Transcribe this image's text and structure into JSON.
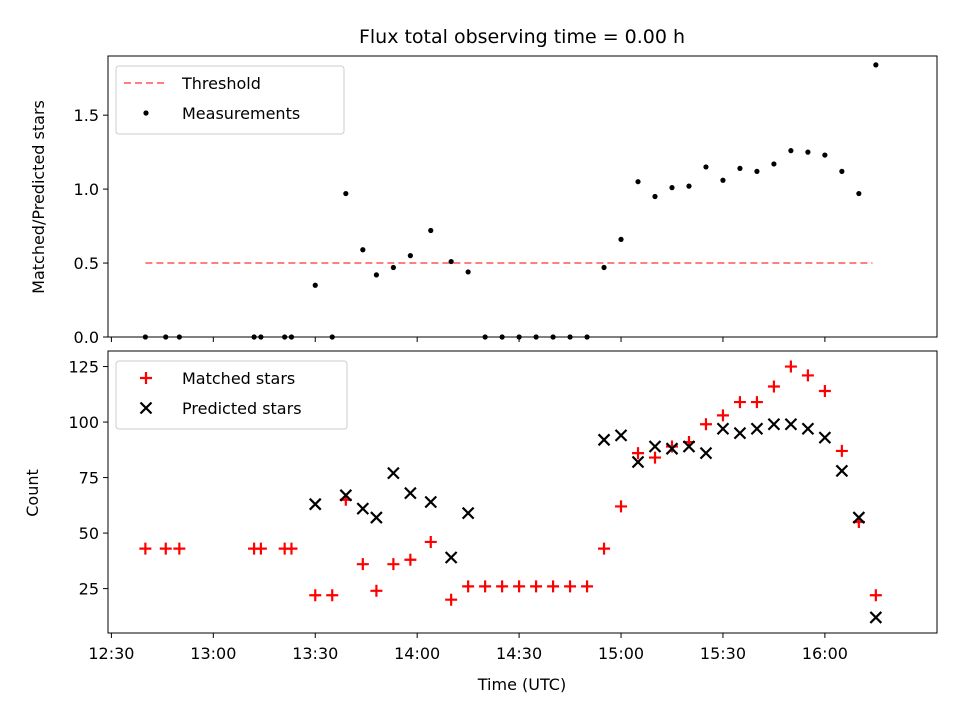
{
  "chart_data": [
    {
      "type": "scatter",
      "title": "Flux total observing time = 0.00 h",
      "xlabel": "",
      "ylabel": "Matched/Predicted stars",
      "xlim": [
        "12:29",
        "16:33"
      ],
      "ylim": [
        0,
        1.9
      ],
      "yticks": [
        "0.0",
        "0.5",
        "1.0",
        "1.5"
      ],
      "legend_position": "upper left",
      "series": [
        {
          "name": "Threshold",
          "style": "dashed-line",
          "color": "#ff7f7f",
          "x": [
            "12:40",
            "16:14"
          ],
          "y": [
            0.5,
            0.5
          ]
        },
        {
          "name": "Measurements",
          "style": "dot",
          "color": "#000000",
          "x": [
            "12:40",
            "12:46",
            "12:50",
            "13:12",
            "13:14",
            "13:21",
            "13:23",
            "13:30",
            "13:35",
            "13:39",
            "13:44",
            "13:48",
            "13:53",
            "13:58",
            "14:04",
            "14:10",
            "14:15",
            "14:20",
            "14:25",
            "14:30",
            "14:35",
            "14:40",
            "14:45",
            "14:50",
            "14:55",
            "15:00",
            "15:05",
            "15:10",
            "15:15",
            "15:20",
            "15:25",
            "15:30",
            "15:35",
            "15:40",
            "15:45",
            "15:50",
            "15:55",
            "16:00",
            "16:05",
            "16:10",
            "16:15"
          ],
          "y": [
            0,
            0,
            0,
            0,
            0,
            0,
            0,
            0.35,
            0,
            0.97,
            0.59,
            0.42,
            0.47,
            0.55,
            0.72,
            0.51,
            0.44,
            0,
            0,
            0,
            0,
            0,
            0,
            0,
            0.47,
            0.66,
            1.05,
            0.95,
            1.01,
            1.02,
            1.15,
            1.06,
            1.14,
            1.12,
            1.17,
            1.26,
            1.25,
            1.23,
            1.12,
            0.97,
            1.84
          ]
        }
      ]
    },
    {
      "type": "scatter",
      "title": "",
      "xlabel": "Time (UTC)",
      "ylabel": "Count",
      "xlim": [
        "12:29",
        "16:33"
      ],
      "ylim": [
        5,
        132
      ],
      "xticks": [
        "12:30",
        "13:00",
        "13:30",
        "14:00",
        "14:30",
        "15:00",
        "15:30",
        "16:00"
      ],
      "yticks": [
        "25",
        "50",
        "75",
        "100",
        "125"
      ],
      "legend_position": "upper left",
      "series": [
        {
          "name": "Matched stars",
          "style": "plus",
          "color": "#ff0000",
          "x": [
            "12:40",
            "12:46",
            "12:50",
            "13:12",
            "13:14",
            "13:21",
            "13:23",
            "13:30",
            "13:35",
            "13:39",
            "13:44",
            "13:48",
            "13:53",
            "13:58",
            "14:04",
            "14:10",
            "14:15",
            "14:20",
            "14:25",
            "14:30",
            "14:35",
            "14:40",
            "14:45",
            "14:50",
            "14:55",
            "15:00",
            "15:05",
            "15:10",
            "15:15",
            "15:20",
            "15:25",
            "15:30",
            "15:35",
            "15:40",
            "15:45",
            "15:50",
            "15:55",
            "16:00",
            "16:05",
            "16:10",
            "16:15"
          ],
          "y": [
            43,
            43,
            43,
            43,
            43,
            43,
            43,
            22,
            22,
            65,
            36,
            24,
            36,
            38,
            46,
            20,
            26,
            26,
            26,
            26,
            26,
            26,
            26,
            26,
            43,
            62,
            86,
            84,
            89,
            91,
            99,
            103,
            109,
            109,
            116,
            125,
            121,
            114,
            87,
            55,
            22
          ]
        },
        {
          "name": "Predicted stars",
          "style": "x",
          "color": "#000000",
          "x": [
            "13:30",
            "13:39",
            "13:44",
            "13:48",
            "13:53",
            "13:58",
            "14:04",
            "14:10",
            "14:15",
            "14:55",
            "15:00",
            "15:05",
            "15:10",
            "15:15",
            "15:20",
            "15:25",
            "15:30",
            "15:35",
            "15:40",
            "15:45",
            "15:50",
            "15:55",
            "16:00",
            "16:05",
            "16:10",
            "16:15"
          ],
          "y": [
            63,
            67,
            61,
            57,
            77,
            68,
            64,
            39,
            59,
            92,
            94,
            82,
            89,
            88,
            89,
            86,
            97,
            95,
            97,
            99,
            99,
            97,
            93,
            78,
            57,
            12
          ]
        }
      ]
    }
  ]
}
